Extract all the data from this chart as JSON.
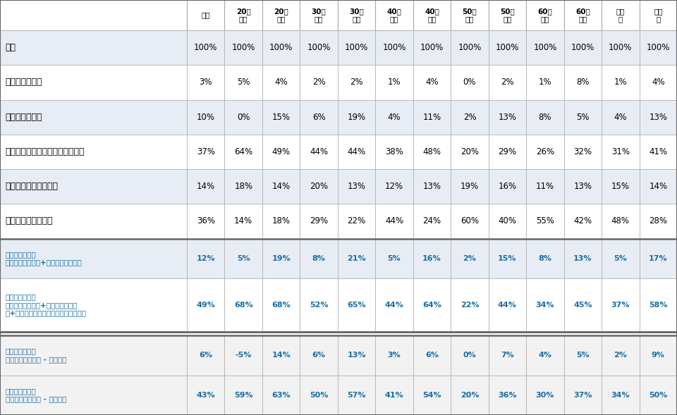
{
  "col_headers": [
    "全体",
    "20代\n男性",
    "20代\n女性",
    "30代\n男性",
    "30代\n女性",
    "40代\n男性",
    "40代\n女性",
    "50代\n男性",
    "50代\n女性",
    "60代\n男性",
    "60代\n女性",
    "男性\n計",
    "女性\n計"
  ],
  "row_labels": [
    "全体",
    "ぜひ利用したい",
    "まあ利用したい",
    "どちらともいえない・わからない",
    "あまり利用したくない",
    "全く利用したくない",
    "積極的利用意向\n（ぜひ利用したい+まあ利用したい）",
    "消極的利用意向\n（ぜひ利用したい+まあ利用したい\n　+どちらともいえない・わからない）",
    "積極的潜在需要\n（積極的利用意向 - 利用率）",
    "消極的潜在需要\n（消極的利用意向 - 利用率）"
  ],
  "table_data": [
    [
      "100%",
      "100%",
      "100%",
      "100%",
      "100%",
      "100%",
      "100%",
      "100%",
      "100%",
      "100%",
      "100%",
      "100%",
      "100%"
    ],
    [
      "3%",
      "5%",
      "4%",
      "2%",
      "2%",
      "1%",
      "4%",
      "0%",
      "2%",
      "1%",
      "8%",
      "1%",
      "4%"
    ],
    [
      "10%",
      "0%",
      "15%",
      "6%",
      "19%",
      "4%",
      "11%",
      "2%",
      "13%",
      "8%",
      "5%",
      "4%",
      "13%"
    ],
    [
      "37%",
      "64%",
      "49%",
      "44%",
      "44%",
      "38%",
      "48%",
      "20%",
      "29%",
      "26%",
      "32%",
      "31%",
      "41%"
    ],
    [
      "14%",
      "18%",
      "14%",
      "20%",
      "13%",
      "12%",
      "13%",
      "19%",
      "16%",
      "11%",
      "13%",
      "15%",
      "14%"
    ],
    [
      "36%",
      "14%",
      "18%",
      "29%",
      "22%",
      "44%",
      "24%",
      "60%",
      "40%",
      "55%",
      "42%",
      "48%",
      "28%"
    ],
    [
      "12%",
      "5%",
      "19%",
      "8%",
      "21%",
      "5%",
      "16%",
      "2%",
      "15%",
      "8%",
      "13%",
      "5%",
      "17%"
    ],
    [
      "49%",
      "68%",
      "68%",
      "52%",
      "65%",
      "44%",
      "64%",
      "22%",
      "44%",
      "34%",
      "45%",
      "37%",
      "58%"
    ],
    [
      "6%",
      "-5%",
      "14%",
      "6%",
      "13%",
      "3%",
      "6%",
      "0%",
      "7%",
      "4%",
      "5%",
      "2%",
      "9%"
    ],
    [
      "43%",
      "59%",
      "63%",
      "50%",
      "57%",
      "41%",
      "54%",
      "20%",
      "36%",
      "30%",
      "37%",
      "34%",
      "50%"
    ]
  ],
  "header_bg": "#ffffff",
  "header_fg": "#000000",
  "bg_odd": "#e8edf5",
  "bg_even": "#ffffff",
  "bg_section2": "#f2f2f2",
  "border_color": "#aaaaaa",
  "border_thick": "#666666",
  "text_black": "#000000",
  "text_teal": "#1c6ea4",
  "fig_w": 9.6,
  "fig_h": 5.89,
  "dpi": 100
}
